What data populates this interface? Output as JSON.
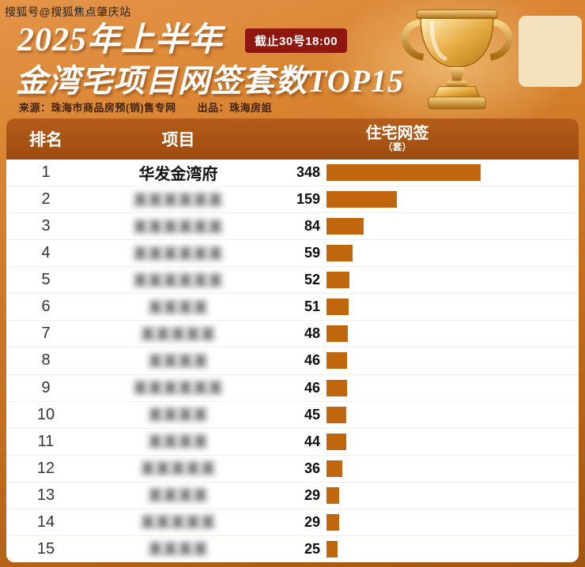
{
  "watermark": "搜狐号@搜狐焦点肇庆站",
  "header": {
    "title_line1": "2025年上半年",
    "badge": "截止30号18:00",
    "title_line2": "金湾宅项目网签套数TOP15",
    "source": "来源：珠海市商品房预(销)售专网　　出品：珠海房姐"
  },
  "table": {
    "columns": {
      "rank": "排名",
      "project": "项目",
      "value_main": "住宅网签",
      "value_sub": "（套）"
    },
    "rows": [
      {
        "rank": "1",
        "project": "华发金湾府",
        "value": 348,
        "blurred": false
      },
      {
        "rank": "2",
        "project": "某某某某某某",
        "value": 159,
        "blurred": true
      },
      {
        "rank": "3",
        "project": "某某某某某某",
        "value": 84,
        "blurred": true
      },
      {
        "rank": "4",
        "project": "某某某某某某",
        "value": 59,
        "blurred": true
      },
      {
        "rank": "5",
        "project": "某某某某某某",
        "value": 52,
        "blurred": true
      },
      {
        "rank": "6",
        "project": "某某某某",
        "value": 51,
        "blurred": true
      },
      {
        "rank": "7",
        "project": "某某某某某",
        "value": 48,
        "blurred": true
      },
      {
        "rank": "8",
        "project": "某某某某",
        "value": 46,
        "blurred": true
      },
      {
        "rank": "9",
        "project": "某某某某某某",
        "value": 46,
        "blurred": true
      },
      {
        "rank": "10",
        "project": "某某某某",
        "value": 45,
        "blurred": true
      },
      {
        "rank": "11",
        "project": "某某某某",
        "value": 44,
        "blurred": true
      },
      {
        "rank": "12",
        "project": "某某某某某",
        "value": 36,
        "blurred": true
      },
      {
        "rank": "13",
        "project": "某某某某",
        "value": 29,
        "blurred": true
      },
      {
        "rank": "14",
        "project": "某某某某某",
        "value": 29,
        "blurred": true
      },
      {
        "rank": "15",
        "project": "某某某某",
        "value": 25,
        "blurred": true
      }
    ]
  },
  "chart_data": {
    "type": "bar",
    "title": "2025年上半年金湾宅项目网签套数TOP15",
    "categories": [
      "华发金湾府",
      "",
      "",
      "",
      "",
      "",
      "",
      "",
      "",
      "",
      "",
      "",
      "",
      "",
      ""
    ],
    "values": [
      348,
      159,
      84,
      59,
      52,
      51,
      48,
      46,
      46,
      45,
      44,
      36,
      29,
      29,
      25
    ],
    "xlabel": "住宅网签（套）",
    "ylabel": "排名",
    "max": 348,
    "bar_color": "#c0660c",
    "legend": "none",
    "grid": "off"
  },
  "colors": {
    "background_top": "#e49448",
    "background_bottom": "#a05510",
    "badge": "#8e180f",
    "table_header": "#a9551a",
    "bar": "#c0660c"
  }
}
